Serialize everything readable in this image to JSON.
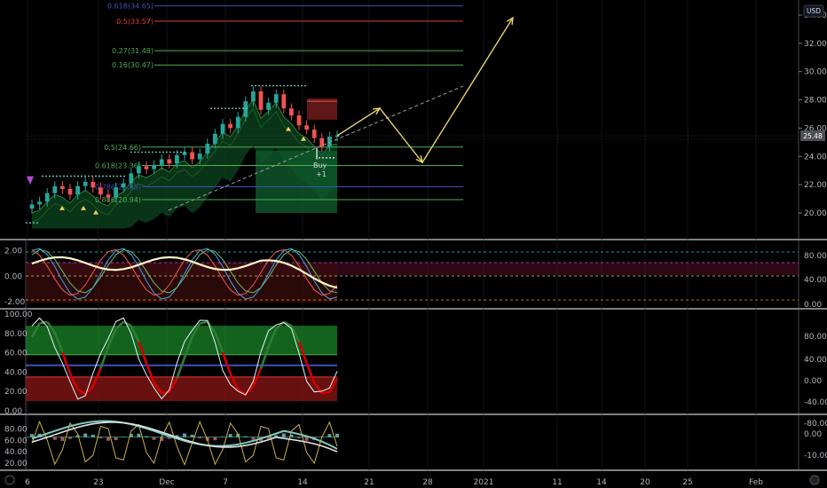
{
  "currency": "USD",
  "last_price_label": "25.48",
  "colors": {
    "background": "#000000",
    "grid": "#1e222d",
    "up": "#26a69a",
    "down": "#ef5350",
    "arrow": "#e8d36a",
    "fib_red": "#e53935",
    "fib_green": "#4caf50",
    "fib_blue": "#3f51b5",
    "rsi_bg": "#5b1030",
    "stoch_green": "#1b8c2a",
    "stoch_red": "#8c1616"
  },
  "chart_data": [
    {
      "type": "line",
      "panel": "price",
      "y_ticks": [
        "34.00",
        "32.00",
        "30.00",
        "28.00",
        "26.00",
        "24.00",
        "22.00",
        "20.00"
      ],
      "ylim": [
        18.5,
        35.0
      ],
      "x_ticks": [
        "6",
        "23",
        "Dec",
        "7",
        "14",
        "21",
        "28",
        "2021",
        "11",
        "14",
        "20",
        "25",
        "Feb"
      ],
      "close": [
        20.6,
        20.8,
        21.4,
        21.9,
        21.7,
        21.3,
        21.9,
        22.2,
        21.8,
        21.3,
        21.1,
        21.8,
        22.1,
        22.8,
        23.3,
        23.1,
        23.4,
        23.8,
        23.5,
        24.1,
        24.3,
        23.8,
        24.2,
        24.9,
        25.6,
        26.3,
        26.0,
        26.8,
        27.9,
        28.6,
        27.3,
        27.8,
        28.4,
        27.4,
        26.9,
        26.2,
        25.9,
        25.3,
        24.7,
        25.4,
        25.48
      ],
      "fib_levels": [
        {
          "label": "0.618(34.65)",
          "value": 34.65,
          "color": "#3f51b5"
        },
        {
          "label": "0.5(33.57)",
          "value": 33.57,
          "color": "#e53935"
        },
        {
          "label": "0.27(31.48)",
          "value": 31.48,
          "color": "#4caf50"
        },
        {
          "label": "0.16(30.47)",
          "value": 30.47,
          "color": "#4caf50"
        },
        {
          "label": "0.5(24.66)",
          "value": 24.66,
          "color": "#4caf50"
        },
        {
          "label": "0.618(23.36)",
          "value": 23.36,
          "color": "#4caf50"
        },
        {
          "label": "0.786(21.85)",
          "value": 21.85,
          "color": "#3f51b5"
        },
        {
          "label": "0.886(20.94)",
          "value": 20.94,
          "color": "#4caf50"
        }
      ],
      "projection": [
        [
          40,
          25.5
        ],
        [
          43,
          27.8
        ],
        [
          47,
          23.7
        ],
        [
          54,
          34.0
        ]
      ],
      "annotations": [
        "Buy",
        "+1"
      ]
    },
    {
      "type": "line",
      "panel": "oscillator",
      "y_ticks_left": [
        "2.00",
        "0.00",
        "-2.00"
      ],
      "y_ticks_right": [
        "80.00",
        "40.00",
        "0.00"
      ],
      "ylim": [
        -2.4,
        2.6
      ]
    },
    {
      "type": "line",
      "panel": "stochastic",
      "y_ticks_left": [
        "100.00",
        "80.00",
        "60.00",
        "40.00",
        "20.00",
        "0.00"
      ],
      "y_ticks_right": [
        "80.00",
        "40.00",
        "0.00",
        "-40.00",
        "-80.00"
      ],
      "ylim": [
        0,
        100
      ]
    },
    {
      "type": "line",
      "panel": "momentum",
      "y_ticks_left": [
        "80.00",
        "60.00",
        "40.00",
        "20.00"
      ],
      "y_ticks_right": [
        "0.00",
        "-10.00"
      ],
      "ylim": [
        12,
        98
      ]
    }
  ]
}
